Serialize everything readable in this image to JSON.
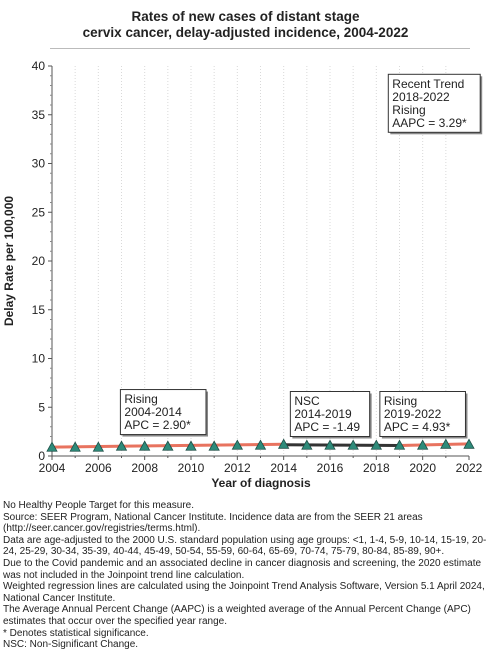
{
  "chart_data": {
    "type": "line",
    "title_line1": "Rates of new cases of distant stage",
    "title_line2": "cervix cancer, delay-adjusted incidence, 2004-2022",
    "xlabel": "Year of diagnosis",
    "ylabel": "Delay Rate per 100,000",
    "xlim": [
      2004,
      2022
    ],
    "ylim": [
      0,
      40
    ],
    "x_ticks": [
      "2004",
      "2006",
      "2008",
      "2010",
      "2012",
      "2014",
      "2016",
      "2018",
      "2020",
      "2022"
    ],
    "y_ticks": [
      "0",
      "5",
      "10",
      "15",
      "20",
      "25",
      "30",
      "35",
      "40"
    ],
    "grid": "vertical dotted",
    "series": [
      {
        "kind": "observed",
        "marker": "triangle",
        "color": "#2e8b7a",
        "x": [
          2004,
          2005,
          2006,
          2007,
          2008,
          2009,
          2010,
          2011,
          2012,
          2013,
          2014,
          2015,
          2016,
          2017,
          2018,
          2019,
          2020,
          2021,
          2022
        ],
        "values": [
          0.9,
          0.9,
          0.9,
          1.0,
          1.0,
          1.0,
          1.0,
          1.0,
          1.1,
          1.1,
          1.2,
          1.1,
          1.1,
          1.1,
          1.1,
          1.1,
          1.1,
          1.2,
          1.2
        ]
      },
      {
        "kind": "trend",
        "segment": "2004-2014",
        "color": "#e8735f",
        "x": [
          2004,
          2014
        ],
        "values": [
          0.91,
          1.21
        ]
      },
      {
        "kind": "trend",
        "segment": "2014-2019",
        "color": "#333333",
        "x": [
          2014,
          2019
        ],
        "values": [
          1.16,
          1.08
        ]
      },
      {
        "kind": "trend",
        "segment": "2019-2022",
        "color": "#e8735f",
        "x": [
          2019,
          2022
        ],
        "values": [
          1.08,
          1.24
        ]
      }
    ],
    "annotations": [
      {
        "lines": [
          "Rising",
          "2004-2014",
          "APC =  2.90*"
        ],
        "anchor_x": 2008.8,
        "anchor_y": 2.2
      },
      {
        "lines": [
          "NSC",
          "2014-2019",
          "APC = -1.49"
        ],
        "anchor_x": 2016.0,
        "anchor_y": 2.0
      },
      {
        "lines": [
          "Rising",
          "2019-2022",
          "APC =  4.93*"
        ],
        "anchor_x": 2020.0,
        "anchor_y": 2.0
      },
      {
        "lines": [
          "Recent Trend",
          "2018-2022",
          "Rising",
          "AAPC =  3.29*"
        ],
        "anchor_x": 2020.5,
        "anchor_y": 33.2
      }
    ]
  },
  "notes": [
    "No Healthy People Target for this measure.",
    "Source: SEER Program, National Cancer Institute. Incidence data are from the SEER 21 areas (http://seer.cancer.gov/registries/terms.html).",
    "Data are age-adjusted to the 2000 U.S. standard population using age groups: <1, 1-4, 5-9, 10-14, 15-19, 20-24, 25-29, 30-34, 35-39, 40-44, 45-49, 50-54, 55-59, 60-64, 65-69, 70-74, 75-79, 80-84, 85-89, 90+.",
    "Due to the Covid pandemic and an associated decline in cancer diagnosis and screening, the 2020 estimate was not included in the Joinpoint trend line calculation.",
    "Weighted regression lines are calculated using the Joinpoint Trend Analysis Software, Version 5.1 April 2024, National Cancer Institute.",
    "The Average Annual Percent Change (AAPC) is a weighted average of the Annual Percent Change (APC) estimates that occur over the specified year range.",
    "* Denotes statistical significance.",
    "NSC: Non-Significant Change."
  ]
}
